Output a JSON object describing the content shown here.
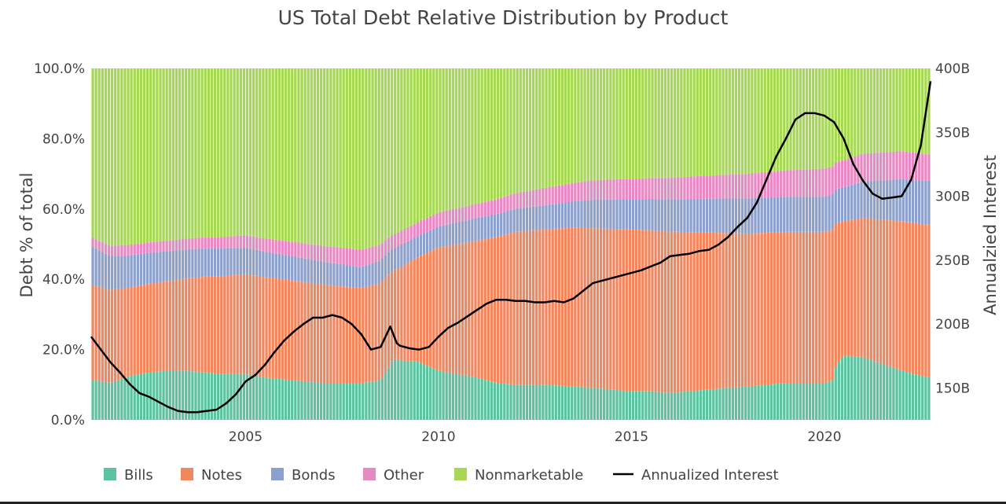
{
  "chart_data": {
    "type": "bar",
    "stacked": true,
    "stack_mode": "percent",
    "title": "US Total Debt Relative Distribution by Product",
    "xlabel": "",
    "ylabel": "Debt % of total",
    "y2label": "Annualzied Interest",
    "xlim": [
      2001.0,
      2022.75
    ],
    "ylim": [
      0,
      100
    ],
    "y2lim": [
      125,
      400
    ],
    "x_ticks": [
      2005,
      2010,
      2015,
      2020
    ],
    "y_ticks": [
      0,
      20,
      40,
      60,
      80,
      100
    ],
    "y_tick_labels": [
      "0.0%",
      "20.0%",
      "40.0%",
      "60.0%",
      "80.0%",
      "100.0%"
    ],
    "y2_ticks": [
      150,
      200,
      250,
      300,
      350,
      400
    ],
    "y2_tick_labels": [
      "150B",
      "200B",
      "250B",
      "300B",
      "350B",
      "400B"
    ],
    "bar_period": "month",
    "legend_position": "bottom",
    "grid": false,
    "series": [
      {
        "name": "Bills",
        "color": "#5ec2a0",
        "keyframes": {
          "x": [
            2001.0,
            2001.5,
            2002.0,
            2002.5,
            2003.0,
            2003.5,
            2004.0,
            2004.5,
            2005.0,
            2005.5,
            2006.0,
            2006.5,
            2007.0,
            2007.5,
            2008.0,
            2008.5,
            2008.67,
            2008.83,
            2009.0,
            2009.5,
            2010.0,
            2010.5,
            2011.0,
            2011.5,
            2012.0,
            2012.5,
            2013.0,
            2013.5,
            2014.0,
            2014.5,
            2015.0,
            2015.5,
            2016.0,
            2016.5,
            2017.0,
            2017.5,
            2018.0,
            2018.5,
            2019.0,
            2019.5,
            2020.0,
            2020.2,
            2020.3,
            2020.5,
            2021.0,
            2021.5,
            2022.0,
            2022.5,
            2022.75
          ],
          "values": [
            11.5,
            10.5,
            12.5,
            13.5,
            14.0,
            14.0,
            13.5,
            13.0,
            13.0,
            12.0,
            11.5,
            11.0,
            10.5,
            10.5,
            10.5,
            11.0,
            14.0,
            17.5,
            17.0,
            16.5,
            14.0,
            13.0,
            12.0,
            10.5,
            10.0,
            10.0,
            9.8,
            9.5,
            9.0,
            8.5,
            8.0,
            8.0,
            7.5,
            8.0,
            8.5,
            9.0,
            9.5,
            10.0,
            10.5,
            10.5,
            10.5,
            11.0,
            16.0,
            19.0,
            18.0,
            16.0,
            14.0,
            12.5,
            12.0
          ]
        }
      },
      {
        "name": "Notes",
        "color": "#f0875f",
        "keyframes": {
          "x": [
            2001.0,
            2001.5,
            2002.0,
            2003.0,
            2004.0,
            2005.0,
            2006.0,
            2007.0,
            2008.0,
            2008.67,
            2008.83,
            2009.0,
            2009.5,
            2010.0,
            2010.5,
            2011.0,
            2012.0,
            2013.0,
            2013.5,
            2014.0,
            2015.0,
            2016.0,
            2017.0,
            2018.0,
            2019.0,
            2020.0,
            2020.2,
            2020.3,
            2020.5,
            2021.0,
            2022.0,
            2022.75
          ],
          "values": [
            27.0,
            26.5,
            25.0,
            25.5,
            27.5,
            28.5,
            28.5,
            28.0,
            27.0,
            27.0,
            25.0,
            26.5,
            30.0,
            35.0,
            37.0,
            39.0,
            43.5,
            44.5,
            45.0,
            45.0,
            45.5,
            45.0,
            44.0,
            43.5,
            43.0,
            43.0,
            43.0,
            42.0,
            39.5,
            40.0,
            42.5,
            43.5
          ]
        }
      },
      {
        "name": "Bonds",
        "color": "#8da0cb",
        "keyframes": {
          "x": [
            2001.0,
            2001.5,
            2003.0,
            2005.0,
            2007.0,
            2008.0,
            2008.75,
            2009.5,
            2010.0,
            2011.0,
            2012.0,
            2013.0,
            2014.0,
            2015.0,
            2016.0,
            2017.0,
            2018.0,
            2019.0,
            2020.0,
            2020.5,
            2021.0,
            2022.0,
            2022.75
          ],
          "values": [
            11.0,
            9.5,
            8.5,
            7.5,
            6.5,
            6.0,
            6.5,
            6.0,
            6.0,
            6.5,
            6.5,
            7.0,
            8.0,
            8.5,
            9.0,
            9.5,
            10.0,
            10.0,
            10.0,
            10.0,
            10.5,
            12.0,
            12.5
          ]
        }
      },
      {
        "name": "Other",
        "color": "#e78ac3",
        "keyframes": {
          "x": [
            2001.0,
            2001.5,
            2003.0,
            2005.0,
            2007.0,
            2008.0,
            2008.75,
            2009.5,
            2010.0,
            2011.0,
            2012.0,
            2014.0,
            2016.0,
            2018.0,
            2019.0,
            2020.0,
            2020.5,
            2021.0,
            2022.0,
            2022.75
          ],
          "values": [
            2.5,
            3.0,
            3.0,
            3.5,
            4.5,
            5.0,
            4.0,
            4.0,
            4.0,
            4.0,
            4.5,
            5.5,
            6.0,
            7.0,
            7.5,
            8.0,
            8.0,
            8.0,
            8.0,
            7.5
          ]
        }
      },
      {
        "name": "Nonmarketable",
        "color": "#a6d854",
        "keyframes": {
          "x": [
            2001.0,
            2001.5,
            2003.0,
            2005.0,
            2007.0,
            2008.0,
            2008.75,
            2009.5,
            2010.0,
            2011.0,
            2012.0,
            2013.0,
            2014.0,
            2015.0,
            2016.0,
            2017.0,
            2018.0,
            2019.0,
            2020.0,
            2020.5,
            2021.0,
            2022.0,
            2022.75
          ],
          "values": [
            48.0,
            50.5,
            49.0,
            47.5,
            50.5,
            51.5,
            48.0,
            43.5,
            41.0,
            38.5,
            35.5,
            33.5,
            31.5,
            31.0,
            30.5,
            30.0,
            30.0,
            29.0,
            28.5,
            27.0,
            24.5,
            23.5,
            24.5
          ]
        }
      }
    ],
    "line_series": {
      "name": "Annualized Interest",
      "axis": "y2",
      "unit": "B",
      "color": "#000000",
      "x": [
        2001.0,
        2001.25,
        2001.5,
        2001.75,
        2002.0,
        2002.25,
        2002.5,
        2002.75,
        2003.0,
        2003.25,
        2003.5,
        2003.75,
        2004.0,
        2004.25,
        2004.5,
        2004.75,
        2005.0,
        2005.25,
        2005.5,
        2005.75,
        2006.0,
        2006.25,
        2006.5,
        2006.75,
        2007.0,
        2007.25,
        2007.5,
        2007.75,
        2008.0,
        2008.25,
        2008.5,
        2008.75,
        2008.92,
        2009.0,
        2009.25,
        2009.5,
        2009.75,
        2010.0,
        2010.25,
        2010.5,
        2010.75,
        2011.0,
        2011.25,
        2011.5,
        2011.75,
        2012.0,
        2012.25,
        2012.5,
        2012.75,
        2013.0,
        2013.25,
        2013.5,
        2013.75,
        2014.0,
        2014.25,
        2014.5,
        2014.75,
        2015.0,
        2015.25,
        2015.5,
        2015.75,
        2016.0,
        2016.25,
        2016.5,
        2016.75,
        2017.0,
        2017.25,
        2017.5,
        2017.75,
        2018.0,
        2018.25,
        2018.5,
        2018.75,
        2019.0,
        2019.25,
        2019.5,
        2019.75,
        2020.0,
        2020.25,
        2020.5,
        2020.75,
        2021.0,
        2021.25,
        2021.5,
        2021.75,
        2022.0,
        2022.25,
        2022.5,
        2022.75
      ],
      "values": [
        190,
        180,
        170,
        162,
        153,
        146,
        143,
        139,
        135,
        132,
        131,
        131,
        132,
        133,
        138,
        145,
        155,
        160,
        168,
        178,
        187,
        194,
        200,
        205,
        205,
        207,
        205,
        200,
        192,
        180,
        182,
        198,
        185,
        183,
        181,
        180,
        182,
        190,
        197,
        201,
        206,
        211,
        216,
        219,
        219,
        218,
        218,
        217,
        217,
        218,
        217,
        220,
        226,
        232,
        234,
        236,
        238,
        240,
        242,
        245,
        248,
        253,
        254,
        255,
        257,
        258,
        262,
        268,
        276,
        283,
        295,
        313,
        331,
        345,
        360,
        365,
        365,
        363,
        358,
        345,
        325,
        312,
        302,
        298,
        299,
        300,
        313,
        340,
        390
      ]
    }
  }
}
